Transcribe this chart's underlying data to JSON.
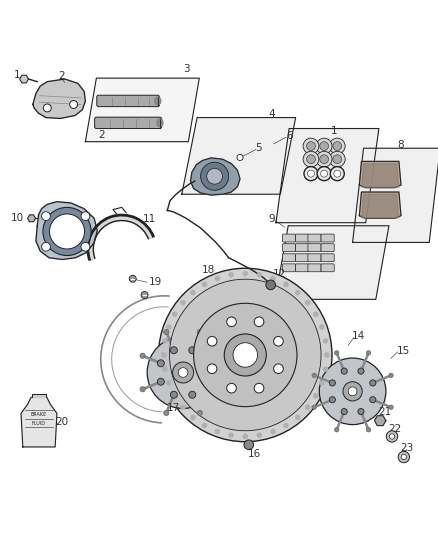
{
  "title": "",
  "background_color": "#ffffff",
  "fig_width": 4.38,
  "fig_height": 5.33,
  "dpi": 100,
  "line_color": "#222222",
  "text_color": "#333333",
  "font_size": 7.5
}
